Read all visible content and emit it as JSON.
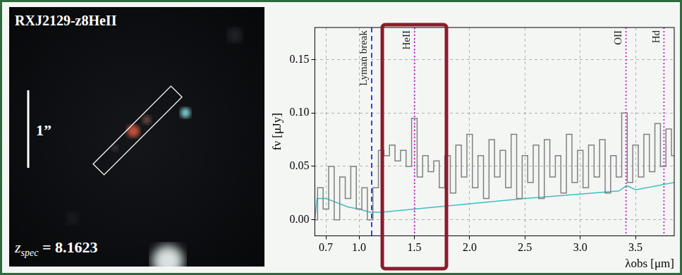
{
  "chart_data": {
    "type": "line",
    "x_label": "λobs [μm]",
    "y_label": "fν [μJy]",
    "xlim": [
      0.6,
      3.85
    ],
    "xticks": [
      0.7,
      {
        "value": 1,
        "label": "1.0"
      },
      1.5,
      {
        "value": 2,
        "label": "2.0"
      },
      2.5,
      {
        "value": 3,
        "label": "3.0"
      },
      3.5
    ],
    "ylim": [
      -0.015,
      0.18
    ],
    "yticks": [
      {
        "value": 0,
        "label": "0.00"
      },
      0.05,
      {
        "value": 0.1,
        "label": "0.10"
      },
      0.15
    ],
    "grid": true,
    "series": [
      {
        "color": "#808080",
        "line_style": "steps",
        "x": [
          0.6,
          0.65,
          0.7,
          0.75,
          0.8,
          0.85,
          0.9,
          0.95,
          1.0,
          1.05,
          1.1,
          1.15,
          1.2,
          1.25,
          1.3,
          1.35,
          1.4,
          1.45,
          1.5,
          1.55,
          1.6,
          1.65,
          1.7,
          1.75,
          1.8,
          1.85,
          1.9,
          1.95,
          2.0,
          2.05,
          2.1,
          2.15,
          2.2,
          2.25,
          2.3,
          2.35,
          2.4,
          2.45,
          2.5,
          2.55,
          2.6,
          2.65,
          2.7,
          2.75,
          2.8,
          2.85,
          2.9,
          2.95,
          3.0,
          3.05,
          3.1,
          3.15,
          3.2,
          3.25,
          3.3,
          3.35,
          3.4,
          3.45,
          3.5,
          3.55,
          3.6,
          3.65,
          3.7,
          3.75,
          3.8,
          3.85
        ],
        "values": [
          0.0,
          0.03,
          0.01,
          0.05,
          0.0,
          0.04,
          0.02,
          0.05,
          0.01,
          0.03,
          0.0,
          0.03,
          0.065,
          0.06,
          0.07,
          0.055,
          0.065,
          0.05,
          0.095,
          0.04,
          0.06,
          0.045,
          0.055,
          0.03,
          0.06,
          0.025,
          0.07,
          0.04,
          0.08,
          0.03,
          0.06,
          0.02,
          0.075,
          0.04,
          0.065,
          0.03,
          0.08,
          0.02,
          0.06,
          0.035,
          0.07,
          0.02,
          0.075,
          0.04,
          0.06,
          0.025,
          0.08,
          0.035,
          0.065,
          0.03,
          0.07,
          0.04,
          0.075,
          0.025,
          0.06,
          0.04,
          0.1,
          0.035,
          0.07,
          0.04,
          0.08,
          0.045,
          0.09,
          0.05,
          0.085,
          0.06
        ]
      },
      {
        "color": "#3fbfbf",
        "line_style": "solid",
        "x": [
          0.6,
          0.62,
          0.7,
          0.8,
          0.9,
          1.0,
          1.1,
          1.2,
          1.5,
          2.0,
          2.5,
          3.0,
          3.35,
          3.42,
          3.5,
          3.85
        ],
        "values": [
          0.0,
          0.02,
          0.02,
          0.016,
          0.012,
          0.01,
          0.007,
          0.007,
          0.01,
          0.015,
          0.02,
          0.024,
          0.027,
          0.032,
          0.028,
          0.035
        ]
      }
    ],
    "lines": [
      {
        "x": 1.114,
        "label": "Lyman break",
        "color": "#3344dd",
        "line_style": "dashed"
      },
      {
        "x": 1.502,
        "label": "HeII",
        "color": "#cc33cc",
        "line_style": "dotted"
      },
      {
        "x": 3.414,
        "label": "OII",
        "color": "#cc33cc",
        "line_style": "dotted"
      },
      {
        "x": 3.757,
        "label": "Hd",
        "color": "#cc33cc",
        "line_style": "dotted"
      }
    ],
    "highlight": {
      "x": [
        1.21,
        1.79
      ],
      "color": "#8b1c2c"
    }
  },
  "image_panel": {
    "title": "RXJ2129-z8HeII",
    "scale_label": "1”",
    "redshift": {
      "symbol": "z",
      "subscript": "spec",
      "relation": "=",
      "value": 8.1623
    }
  }
}
